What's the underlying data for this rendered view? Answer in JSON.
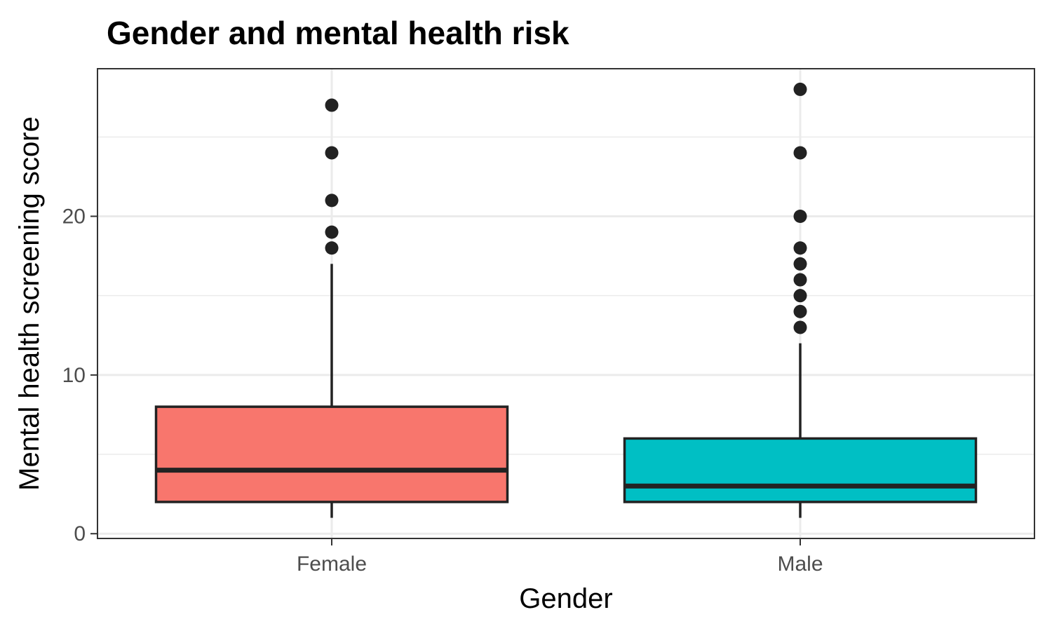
{
  "chart_data": {
    "type": "box",
    "title": "Gender and mental health risk",
    "xlabel": "Gender",
    "ylabel": "Mental health screening score",
    "categories": [
      "Female",
      "Male"
    ],
    "y_ticks": [
      0,
      10,
      20
    ],
    "y_minor_ticks": [
      5,
      15,
      25
    ],
    "ylim": [
      -0.3,
      29.3
    ],
    "grid": true,
    "legend": "none",
    "boxes": [
      {
        "category": "Female",
        "whisker_low": 1,
        "q1": 2,
        "median": 4,
        "q3": 8,
        "whisker_high": 17,
        "outliers": [
          18,
          19,
          21,
          24,
          27
        ],
        "fill": "#F8766D"
      },
      {
        "category": "Male",
        "whisker_low": 1,
        "q1": 2,
        "median": 3,
        "q3": 6,
        "whisker_high": 12,
        "outliers": [
          13,
          14,
          15,
          16,
          17,
          18,
          20,
          24,
          28
        ],
        "fill": "#00BFC4"
      }
    ],
    "colors": {
      "panel_border": "#333333",
      "grid_major": "#ebebeb",
      "grid_minor": "#ebebeb",
      "box_line": "#222222",
      "outlier": "#222222",
      "tick_text": "#4d4d4d",
      "tick_mark": "#333333"
    }
  }
}
